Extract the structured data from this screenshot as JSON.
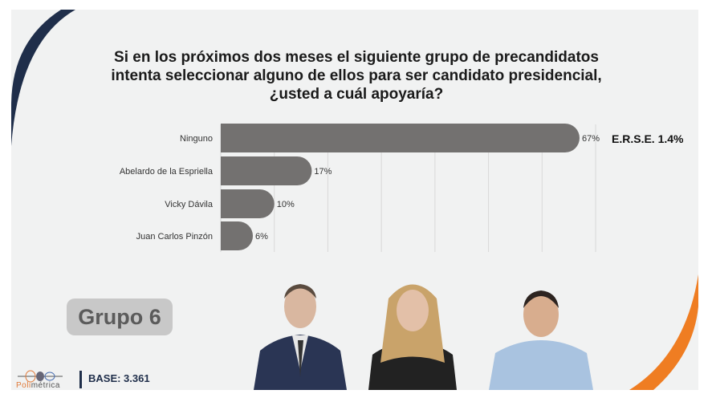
{
  "title": "Si en los próximos dos meses el siguiente grupo de precandidatos intenta seleccionar alguno de ellos para ser candidato presidencial, ¿usted a cuál apoyaría?",
  "erse": "E.R.S.E. 1.4%",
  "group_label": "Grupo 6",
  "logo": {
    "brand_prefix": "Poli",
    "brand_suffix": "métrica"
  },
  "base": "BASE: 3.361",
  "colors": {
    "bar": "#737170",
    "navy": "#1f2e4a",
    "orange": "#ef7d22"
  },
  "chart_data": {
    "type": "bar",
    "orientation": "horizontal",
    "title": "Si en los próximos dos meses el siguiente grupo de precandidatos intenta seleccionar alguno de ellos para ser candidato presidencial, ¿usted a cuál apoyaría?",
    "categories": [
      "Ninguno",
      "Abelardo de la Espriella",
      "Vicky Dávila",
      "Juan Carlos Pinzón"
    ],
    "values": [
      67,
      17,
      10,
      6
    ],
    "value_labels": [
      "67%",
      "17%",
      "10%",
      "6%"
    ],
    "xlim": [
      0,
      70
    ],
    "grid": true,
    "unit": "%"
  }
}
